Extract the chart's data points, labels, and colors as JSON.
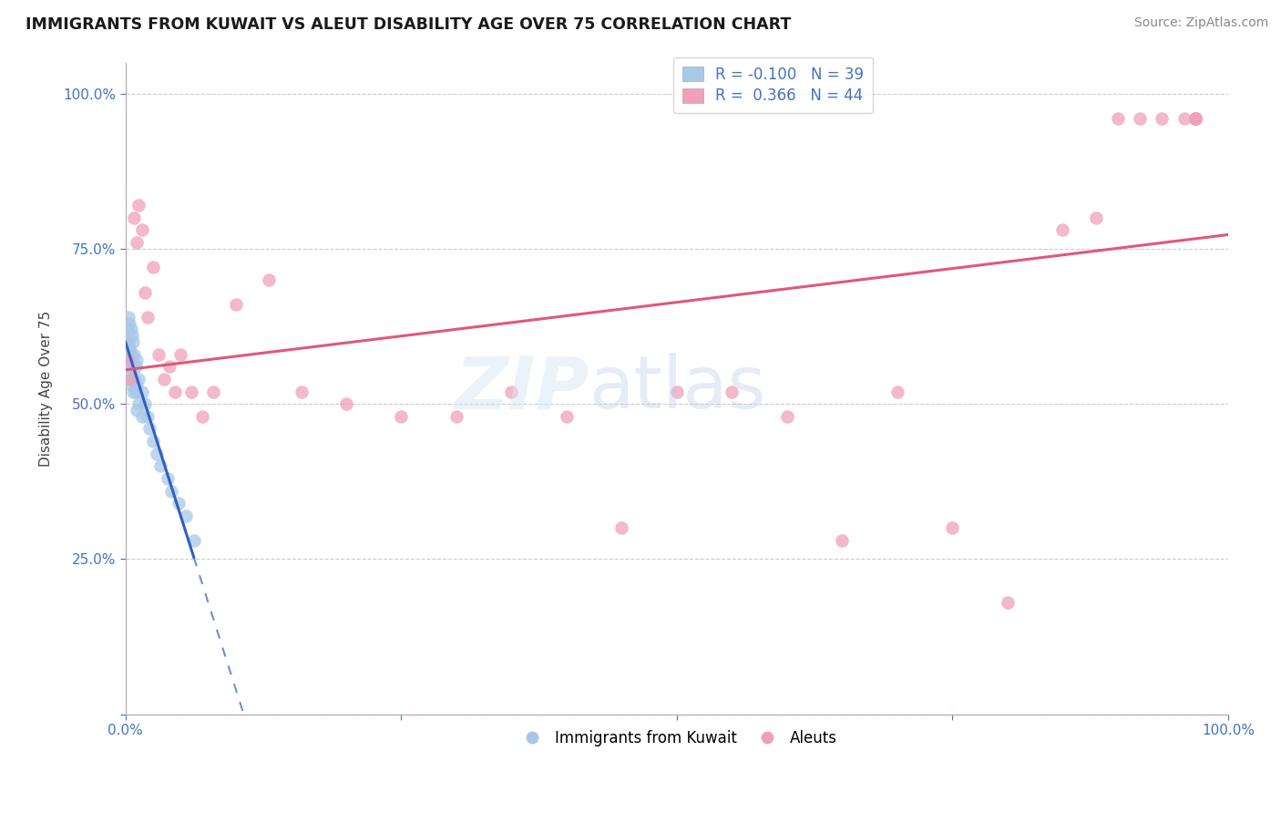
{
  "title": "IMMIGRANTS FROM KUWAIT VS ALEUT DISABILITY AGE OVER 75 CORRELATION CHART",
  "source": "Source: ZipAtlas.com",
  "ylabel": "Disability Age Over 75",
  "legend_r_blue": "-0.100",
  "legend_n_blue": "39",
  "legend_r_pink": "0.366",
  "legend_n_pink": "44",
  "blue_color": "#a8c8e8",
  "pink_color": "#f0a0b8",
  "blue_line_color": "#3060c0",
  "pink_line_color": "#e05878",
  "background_color": "#ffffff",
  "grid_color": "#cccccc",
  "blue_points_x": [
    0.002,
    0.002,
    0.003,
    0.003,
    0.003,
    0.004,
    0.004,
    0.004,
    0.005,
    0.005,
    0.005,
    0.006,
    0.006,
    0.006,
    0.007,
    0.007,
    0.007,
    0.008,
    0.008,
    0.009,
    0.009,
    0.01,
    0.01,
    0.01,
    0.012,
    0.012,
    0.015,
    0.015,
    0.018,
    0.02,
    0.022,
    0.025,
    0.028,
    0.032,
    0.038,
    0.042,
    0.048,
    0.055,
    0.062
  ],
  "blue_points_y": [
    0.62,
    0.58,
    0.64,
    0.6,
    0.56,
    0.63,
    0.59,
    0.55,
    0.62,
    0.58,
    0.54,
    0.61,
    0.57,
    0.53,
    0.6,
    0.56,
    0.52,
    0.58,
    0.54,
    0.56,
    0.52,
    0.57,
    0.53,
    0.49,
    0.54,
    0.5,
    0.52,
    0.48,
    0.5,
    0.48,
    0.46,
    0.44,
    0.42,
    0.4,
    0.38,
    0.36,
    0.34,
    0.32,
    0.28
  ],
  "pink_points_x": [
    0.003,
    0.005,
    0.008,
    0.01,
    0.012,
    0.015,
    0.018,
    0.02,
    0.025,
    0.03,
    0.035,
    0.04,
    0.045,
    0.05,
    0.06,
    0.07,
    0.08,
    0.1,
    0.13,
    0.16,
    0.2,
    0.25,
    0.3,
    0.35,
    0.4,
    0.45,
    0.5,
    0.55,
    0.6,
    0.65,
    0.7,
    0.75,
    0.8,
    0.85,
    0.88,
    0.9,
    0.92,
    0.94,
    0.96,
    0.97,
    0.97,
    0.97,
    0.97,
    0.97
  ],
  "pink_points_y": [
    0.57,
    0.54,
    0.8,
    0.76,
    0.82,
    0.78,
    0.68,
    0.64,
    0.72,
    0.58,
    0.54,
    0.56,
    0.52,
    0.58,
    0.52,
    0.48,
    0.52,
    0.66,
    0.7,
    0.52,
    0.5,
    0.48,
    0.48,
    0.52,
    0.48,
    0.3,
    0.52,
    0.52,
    0.48,
    0.28,
    0.52,
    0.3,
    0.18,
    0.78,
    0.8,
    0.96,
    0.96,
    0.96,
    0.96,
    0.96,
    0.96,
    0.96,
    0.96,
    0.96
  ]
}
